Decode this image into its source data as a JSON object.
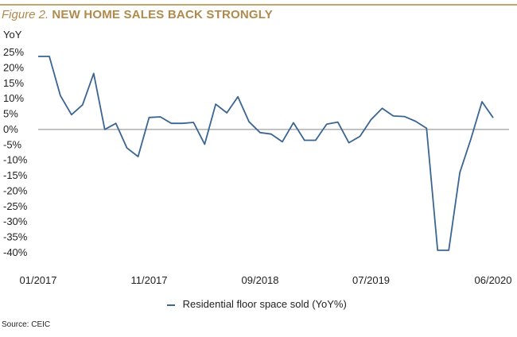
{
  "figure": {
    "prefix": "Figure 2.",
    "title": "NEW HOME SALES BACK STRONGLY"
  },
  "source": "Source: CEIC",
  "colors": {
    "line": "#3a6592",
    "accent": "#b08a4a",
    "zero_line": "#888888"
  },
  "chart_data": {
    "type": "line",
    "title": "NEW HOME SALES BACK STRONGLY",
    "ylabel": "YoY",
    "xlabel": "",
    "ylim": [
      -40,
      25
    ],
    "yticks": [
      25,
      20,
      15,
      10,
      5,
      0,
      -5,
      -10,
      -15,
      -20,
      -25,
      -30,
      -35,
      -40
    ],
    "ytick_labels": [
      "25%",
      "20%",
      "15%",
      "10%",
      "5%",
      "0%",
      "-5%",
      "-10%",
      "-15%",
      "-20%",
      "-25%",
      "-30%",
      "-35%",
      "-40%"
    ],
    "xtick_labels": [
      "01/2017",
      "11/2017",
      "09/2018",
      "07/2019",
      "06/2020"
    ],
    "xtick_index": [
      0,
      10,
      20,
      30,
      41
    ],
    "legend": "bottom",
    "grid": false,
    "series": [
      {
        "name": "Residential floor space sold (YoY%)",
        "x": [
          "01/2017",
          "02/2017",
          "03/2017",
          "04/2017",
          "05/2017",
          "06/2017",
          "07/2017",
          "08/2017",
          "09/2017",
          "10/2017",
          "11/2017",
          "12/2017",
          "01/2018",
          "02/2018",
          "03/2018",
          "04/2018",
          "05/2018",
          "06/2018",
          "07/2018",
          "08/2018",
          "09/2018",
          "10/2018",
          "11/2018",
          "12/2018",
          "01/2019",
          "02/2019",
          "03/2019",
          "04/2019",
          "05/2019",
          "06/2019",
          "07/2019",
          "08/2019",
          "09/2019",
          "10/2019",
          "11/2019",
          "12/2019",
          "01/2020",
          "02/2020",
          "03/2020",
          "04/2020",
          "05/2020",
          "06/2020"
        ],
        "values": [
          23.7,
          23.7,
          11.0,
          4.8,
          8.0,
          18.2,
          0.0,
          2.0,
          -6.0,
          -8.8,
          3.9,
          4.1,
          2.0,
          2.0,
          2.3,
          -4.8,
          8.2,
          5.4,
          10.6,
          2.5,
          -1.0,
          -1.5,
          -4.0,
          2.2,
          -3.5,
          -3.5,
          1.7,
          2.4,
          -4.3,
          -2.2,
          3.2,
          6.9,
          4.4,
          4.2,
          2.7,
          0.4,
          -39.2,
          -39.2,
          -14.0,
          -3.0,
          9.0,
          3.8
        ]
      }
    ]
  }
}
